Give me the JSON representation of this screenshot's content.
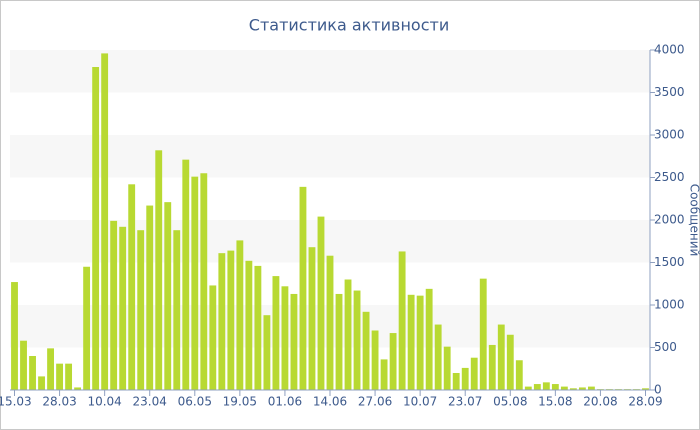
{
  "chart_data": {
    "type": "bar",
    "title": "Статистика активности",
    "y_axis_label": "Сообщений",
    "categories": [
      "15.03",
      null,
      null,
      null,
      null,
      "28.03",
      null,
      null,
      null,
      null,
      "10.04",
      null,
      null,
      null,
      null,
      "23.04",
      null,
      null,
      null,
      null,
      "06.05",
      null,
      null,
      null,
      null,
      "19.05",
      null,
      null,
      null,
      null,
      "01.06",
      null,
      null,
      null,
      null,
      "14.06",
      null,
      null,
      null,
      null,
      "27.06",
      null,
      null,
      null,
      null,
      "10.07",
      null,
      null,
      null,
      null,
      "23.07",
      null,
      null,
      null,
      null,
      "05.08",
      null,
      null,
      null,
      null,
      "15.08",
      null,
      null,
      null,
      null,
      "20.08",
      null,
      null,
      null,
      null,
      "28.09"
    ],
    "values": [
      1270,
      580,
      400,
      160,
      490,
      310,
      310,
      30,
      1450,
      3800,
      3960,
      1990,
      1920,
      2420,
      1880,
      2170,
      2820,
      2210,
      1880,
      2710,
      2510,
      2550,
      1230,
      1610,
      1640,
      1760,
      1520,
      1460,
      880,
      1340,
      1220,
      1130,
      2390,
      1680,
      2040,
      1580,
      1130,
      1300,
      1170,
      920,
      700,
      360,
      670,
      1630,
      1120,
      1110,
      1190,
      770,
      510,
      200,
      260,
      380,
      1310,
      530,
      770,
      650,
      350,
      40,
      70,
      90,
      70,
      40,
      20,
      30,
      40,
      10,
      10,
      10,
      10,
      10,
      20
    ],
    "color": "#b8d932",
    "ylim": [
      0,
      4000
    ],
    "yticks": [
      0,
      500,
      1000,
      1500,
      2000,
      2500,
      3000,
      3500,
      4000
    ],
    "y_axis_side": "right",
    "alternate_bands": true
  }
}
